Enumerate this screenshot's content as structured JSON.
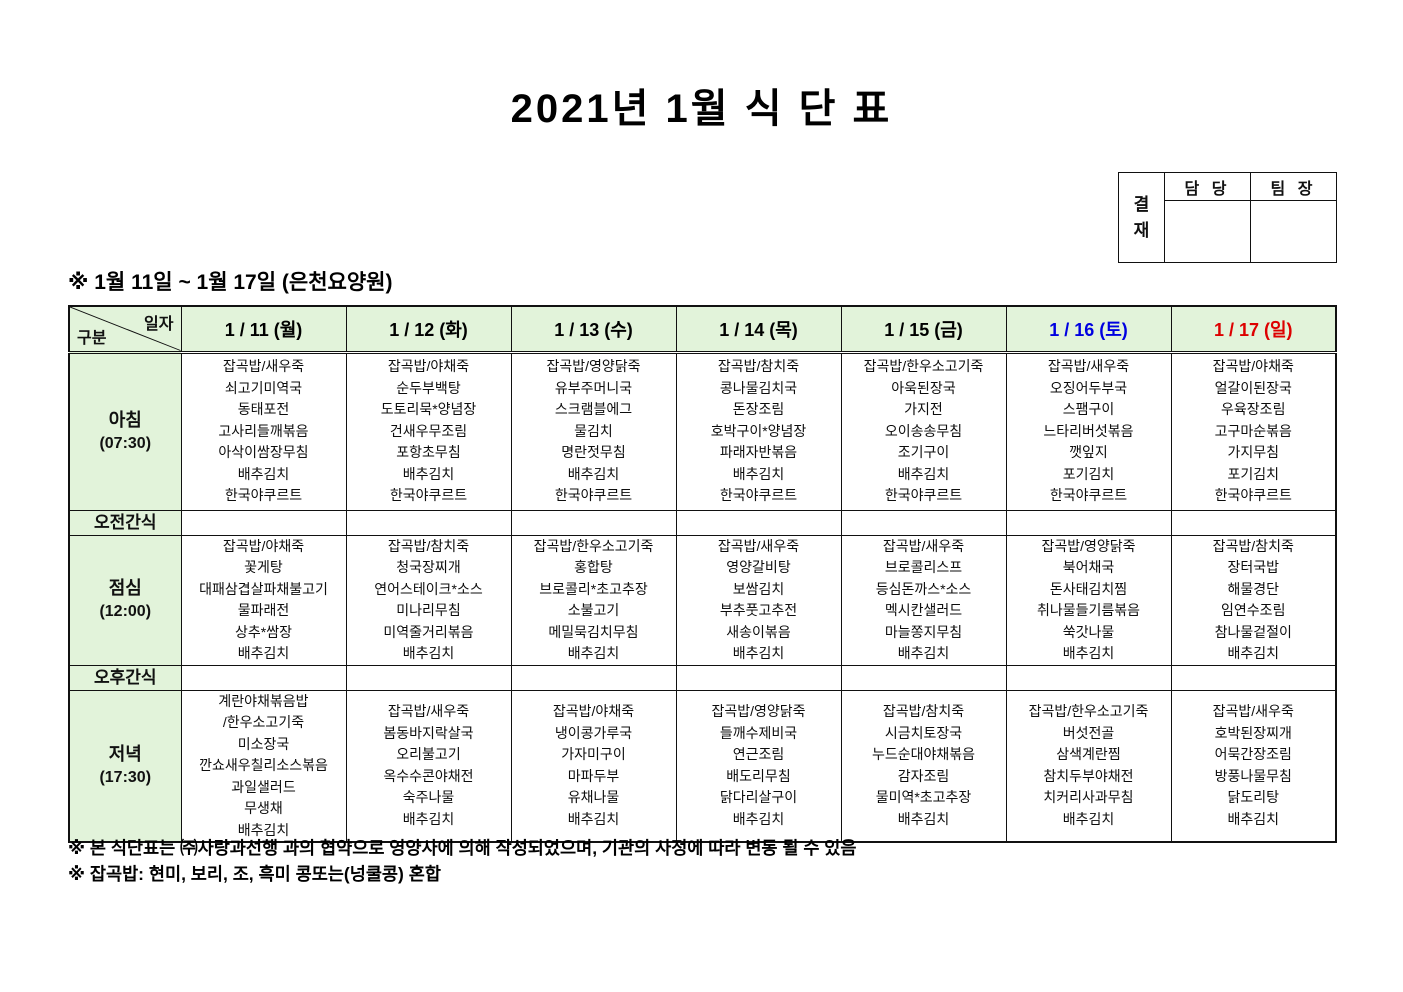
{
  "title": "2021년 1월 식 단 표",
  "approval": {
    "label_chars": [
      "결",
      "재"
    ],
    "columns": [
      "담 당",
      "팀 장"
    ]
  },
  "subtitle": "※  1월 11일 ~ 1월 17일 (은천요양원)",
  "colors": {
    "header_green": "#e2f3da",
    "saturday_blue": "#0000e0",
    "sunday_red": "#dd0000",
    "weekday_black": "#000000"
  },
  "table": {
    "corner": {
      "top_right": "일자",
      "bottom_left": "구분"
    },
    "days": [
      {
        "label": "1 / 11 (월)",
        "color": "#000000"
      },
      {
        "label": "1 / 12 (화)",
        "color": "#000000"
      },
      {
        "label": "1 / 13 (수)",
        "color": "#000000"
      },
      {
        "label": "1 / 14 (목)",
        "color": "#000000"
      },
      {
        "label": "1 / 15 (금)",
        "color": "#000000"
      },
      {
        "label": "1 / 16 (토)",
        "color": "#0000e0"
      },
      {
        "label": "1 / 17 (일)",
        "color": "#dd0000"
      }
    ],
    "rows": [
      {
        "id": "breakfast",
        "type": "meal",
        "label": "아침",
        "time": "(07:30)",
        "menus": [
          [
            "잡곡밥/새우죽",
            "쇠고기미역국",
            "동태포전",
            "고사리들깨볶음",
            "아삭이쌈장무침",
            "배추김치",
            "한국야쿠르트"
          ],
          [
            "잡곡밥/야채죽",
            "순두부백탕",
            "도토리묵*양념장",
            "건새우무조림",
            "포항초무침",
            "배추김치",
            "한국야쿠르트"
          ],
          [
            "잡곡밥/영양닭죽",
            "유부주머니국",
            "스크램블에그",
            "물김치",
            "명란젓무침",
            "배추김치",
            "한국야쿠르트"
          ],
          [
            "잡곡밥/참치죽",
            "콩나물김치국",
            "돈장조림",
            "호박구이*양념장",
            "파래자반볶음",
            "배추김치",
            "한국야쿠르트"
          ],
          [
            "잡곡밥/한우소고기죽",
            "아욱된장국",
            "가지전",
            "오이송송무침",
            "조기구이",
            "배추김치",
            "한국야쿠르트"
          ],
          [
            "잡곡밥/새우죽",
            "오징어두부국",
            "스팸구이",
            "느타리버섯볶음",
            "깻잎지",
            "포기김치",
            "한국야쿠르트"
          ],
          [
            "잡곡밥/야채죽",
            "얼갈이된장국",
            "우육장조림",
            "고구마순볶음",
            "가지무침",
            "포기김치",
            "한국야쿠르트"
          ]
        ]
      },
      {
        "id": "am-snack",
        "type": "snack",
        "label": "오전간식",
        "menus": [
          [],
          [],
          [],
          [],
          [],
          [],
          []
        ]
      },
      {
        "id": "lunch",
        "type": "meal",
        "label": "점심",
        "time": "(12:00)",
        "menus": [
          [
            "잡곡밥/야채죽",
            "꽃게탕",
            "대패삼겹살파채불고기",
            "물파래전",
            "상추*쌈장",
            "배추김치"
          ],
          [
            "잡곡밥/참치죽",
            "청국장찌개",
            "연어스테이크*소스",
            "미나리무침",
            "미역줄거리볶음",
            "배추김치"
          ],
          [
            "잡곡밥/한우소고기죽",
            "홍합탕",
            "브로콜리*초고추장",
            "소불고기",
            "메밀묵김치무침",
            "배추김치"
          ],
          [
            "잡곡밥/새우죽",
            "영양갈비탕",
            "보쌈김치",
            "부추풋고추전",
            "새송이볶음",
            "배추김치"
          ],
          [
            "잡곡밥/새우죽",
            "브로콜리스프",
            "등심돈까스*소스",
            "멕시칸샐러드",
            "마늘쫑지무침",
            "배추김치"
          ],
          [
            "잡곡밥/영양닭죽",
            "북어채국",
            "돈사태김치찜",
            "취나물들기름볶음",
            "쑥갓나물",
            "배추김치"
          ],
          [
            "잡곡밥/참치죽",
            "장터국밥",
            "해물경단",
            "임연수조림",
            "참나물겉절이",
            "배추김치"
          ]
        ]
      },
      {
        "id": "pm-snack",
        "type": "snack",
        "label": "오후간식",
        "menus": [
          [],
          [],
          [],
          [],
          [],
          [],
          []
        ]
      },
      {
        "id": "dinner",
        "type": "meal",
        "label": "저녁",
        "time": "(17:30)",
        "menus": [
          [
            "계란야채볶음밥",
            "/한우소고기죽",
            "미소장국",
            "깐쇼새우칠리소스볶음",
            "과일샐러드",
            "무생채",
            "배추김치"
          ],
          [
            "잡곡밥/새우죽",
            "봄동바지락살국",
            "오리불고기",
            "옥수수콘야채전",
            "숙주나물",
            "배추김치"
          ],
          [
            "잡곡밥/야채죽",
            "냉이콩가루국",
            "가자미구이",
            "마파두부",
            "유채나물",
            "배추김치"
          ],
          [
            "잡곡밥/영양닭죽",
            "들깨수제비국",
            "연근조림",
            "배도리무침",
            "닭다리살구이",
            "배추김치"
          ],
          [
            "잡곡밥/참치죽",
            "시금치토장국",
            "누드순대야채볶음",
            "감자조림",
            "물미역*초고추장",
            "배추김치"
          ],
          [
            "잡곡밥/한우소고기죽",
            "버섯전골",
            "삼색계란찜",
            "참치두부야채전",
            "치커리사과무침",
            "배추김치"
          ],
          [
            "잡곡밥/새우죽",
            "호박된장찌개",
            "어묵간장조림",
            "방풍나물무침",
            "닭도리탕",
            "배추김치"
          ]
        ]
      }
    ]
  },
  "footnotes": [
    "※ 본 식단표는 ㈜사랑과선행 과의 협약으로 영양사에 의해 작성되었으며, 기관의 사정에 따라 변동 될 수 있음",
    "※ 잡곡밥: 현미, 보리, 조, 흑미 콩또는(넝쿨콩) 혼합"
  ]
}
